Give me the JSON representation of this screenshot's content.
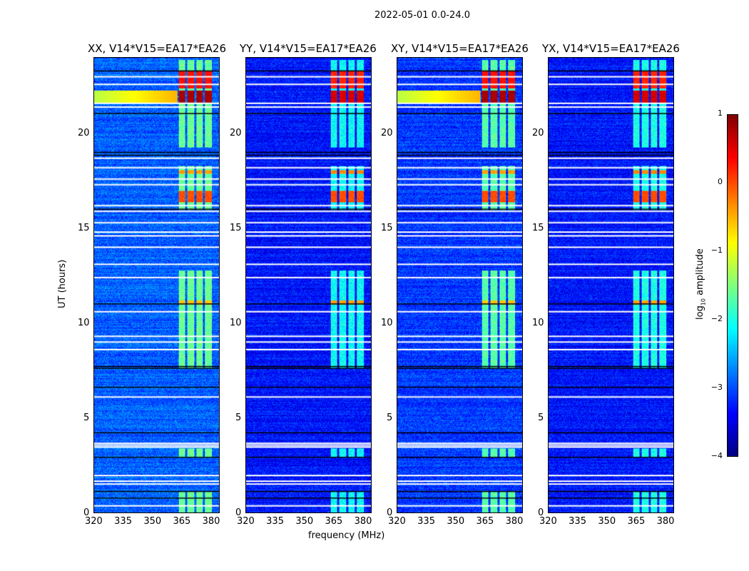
{
  "suptitle": "2022-05-01 0.0-24.0",
  "chart_data": {
    "type": "heatmap",
    "xlabel": "frequency (MHz)",
    "ylabel": "UT (hours)",
    "xlim": [
      320,
      384.5
    ],
    "ylim": [
      0,
      24
    ],
    "xticks": [
      320,
      335,
      350,
      365,
      380
    ],
    "yticks": [
      0,
      5,
      10,
      15,
      20
    ],
    "colorbar": {
      "label": "log10 amplitude",
      "label_main": "log",
      "label_sub": "10",
      "label_tail": " amplitude",
      "range": [
        -4,
        1
      ],
      "ticks": [
        "1",
        "0",
        "−1",
        "−2",
        "−3",
        "−4"
      ],
      "colormap": "jet"
    },
    "panels": [
      {
        "title": "XX, V14*V15=EA17*EA26",
        "base_level": -2.9,
        "rfi_level": -1.6,
        "strong_level": 0.7
      },
      {
        "title": "YY, V14*V15=EA17*EA26",
        "base_level": -3.3,
        "rfi_level": -2.1,
        "strong_level": 0.5
      },
      {
        "title": "XY, V14*V15=EA17*EA26",
        "base_level": -3.1,
        "rfi_level": -1.7,
        "strong_level": 0.7
      },
      {
        "title": "YX, V14*V15=EA17*EA26",
        "base_level": -3.3,
        "rfi_level": -2.0,
        "strong_level": 0.5
      }
    ],
    "rfi_channels_mhz": [
      [
        363.5,
        367
      ],
      [
        368,
        371.5
      ],
      [
        372.5,
        376
      ],
      [
        377,
        380.5
      ]
    ],
    "rfi_active_hours": [
      [
        0,
        1.1
      ],
      [
        2.9,
        3.4
      ],
      [
        7.6,
        12.8
      ],
      [
        16,
        18.3
      ],
      [
        19.3,
        23.9
      ]
    ],
    "strong_events_hours": [
      [
        11,
        11.2,
        -0.6
      ],
      [
        16.4,
        17.0,
        0.0
      ],
      [
        17.9,
        18.1,
        -0.4
      ],
      [
        21.6,
        22.3,
        0.8
      ],
      [
        22.4,
        23.3,
        0.3
      ]
    ],
    "flagged_white_hours": [
      0.35,
      1.5,
      1.65,
      1.95,
      3.45,
      3.55,
      3.65,
      6.1,
      8.6,
      9.0,
      9.3,
      10.6,
      12.4,
      13.1,
      14.0,
      14.6,
      14.8,
      15.3,
      15.9,
      16.2,
      17.3,
      17.6,
      18.2,
      18.7,
      21.4,
      21.6,
      22.6,
      23.0
    ],
    "flagged_black_hours": [
      0.75,
      1.1,
      2.9,
      4.2,
      6.6,
      7.6,
      7.7,
      11.0,
      16.0,
      18.85,
      19.0,
      21.05,
      23.3
    ]
  }
}
